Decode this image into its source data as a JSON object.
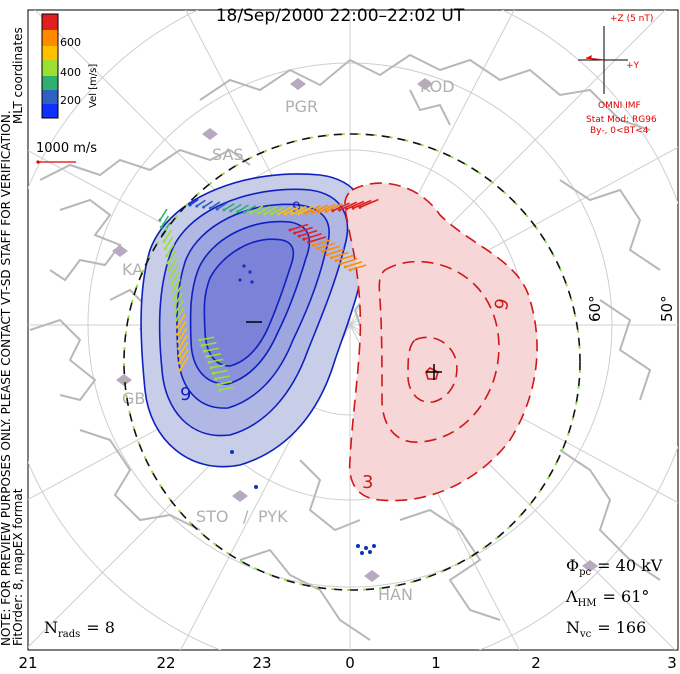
{
  "title": "18/Sep/2000 22:00–22:02 UT",
  "side_notes": {
    "mlt_coordinates": "MLT coordinates",
    "preview_line1": "NOTE: FOR PREVIEW PURPOSES ONLY.  PLEASE CONTACT VT-SD STAFF FOR VERIFICATION.",
    "preview_line2": "FitOrder: 8,  mapEX format"
  },
  "velocity_scale": {
    "label": "Vel [m/s]",
    "ticks": [
      "600",
      "400",
      "200"
    ],
    "colors": [
      "#e02020",
      "#ff8a00",
      "#ffc000",
      "#9be030",
      "#30b070",
      "#3060c0",
      "#1030ff"
    ]
  },
  "vector_scale": {
    "label": "1000 m/s",
    "color": "#e00000"
  },
  "imf": {
    "z_label": "+Z (5 nT)",
    "y_label": "+Y",
    "source": "OMNI IMF",
    "model": "Stat Mod: RG96",
    "condition": "By-,  0<BT<4"
  },
  "stations": [
    "KOD",
    "PGR",
    "SAS",
    "KAP",
    "GBR",
    "STO",
    "PYK",
    "HAN"
  ],
  "latitude_labels": [
    "60°",
    "50°"
  ],
  "mlt_labels": [
    "21",
    "22",
    "23",
    "0",
    "1",
    "2",
    "3"
  ],
  "stats": {
    "phi_symbol": "Φ",
    "phi_sub": "pc",
    "phi_value": "= 40 kV",
    "lambda_symbol": "Λ",
    "lambda_sub": "HM",
    "lambda_value": "= 61°",
    "nvc_symbol": "N",
    "nvc_sub": "vc",
    "nvc_value": "= 166",
    "nrads_symbol": "N",
    "nrads_sub": "rads",
    "nrads_value": "= 8"
  },
  "contour_labels": {
    "negative": "9",
    "negative_top": "9",
    "positive_right": "9",
    "positive_bottom": "3"
  },
  "potential_colors": {
    "negative": "#1020c0",
    "positive": "#d01818",
    "negative_fill": "#c8cde8",
    "positive_fill": "#f6d6d6"
  }
}
